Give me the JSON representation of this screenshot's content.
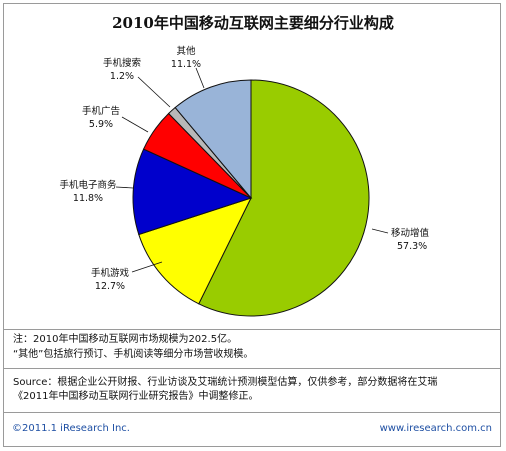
{
  "chart_data": {
    "type": "pie",
    "title": "2010年中国移动互联网主要细分行业构成",
    "slices": [
      {
        "label": "移动增值",
        "value": 57.3,
        "display": "57.3%",
        "color": "#99cc00"
      },
      {
        "label": "手机游戏",
        "value": 12.7,
        "display": "12.7%",
        "color": "#ffff00"
      },
      {
        "label": "手机电子商务",
        "value": 11.8,
        "display": "11.8%",
        "color": "#0000cc"
      },
      {
        "label": "手机广告",
        "value": 5.9,
        "display": "5.9%",
        "color": "#ff0000"
      },
      {
        "label": "手机搜索",
        "value": 1.2,
        "display": "1.2%",
        "color": "#b8b8b8"
      },
      {
        "label": "其他",
        "value": 11.1,
        "display": "11.1%",
        "color": "#99b4d8"
      }
    ]
  },
  "notes": {
    "note1": "注：2010年中国移动互联网市场规模为202.5亿。",
    "note2": "“其他”包括旅行预订、手机阅读等细分市场营收规模。",
    "source1": "Source：根据企业公开财报、行业访谈及艾瑞统计预测模型估算，仅供参考，部分数据将在艾瑞",
    "source2": "《2011年中国移动互联网行业研究报告》中调整修正。"
  },
  "footer": {
    "copyright": "©2011.1 iResearch Inc.",
    "website": "www.iresearch.com.cn"
  }
}
